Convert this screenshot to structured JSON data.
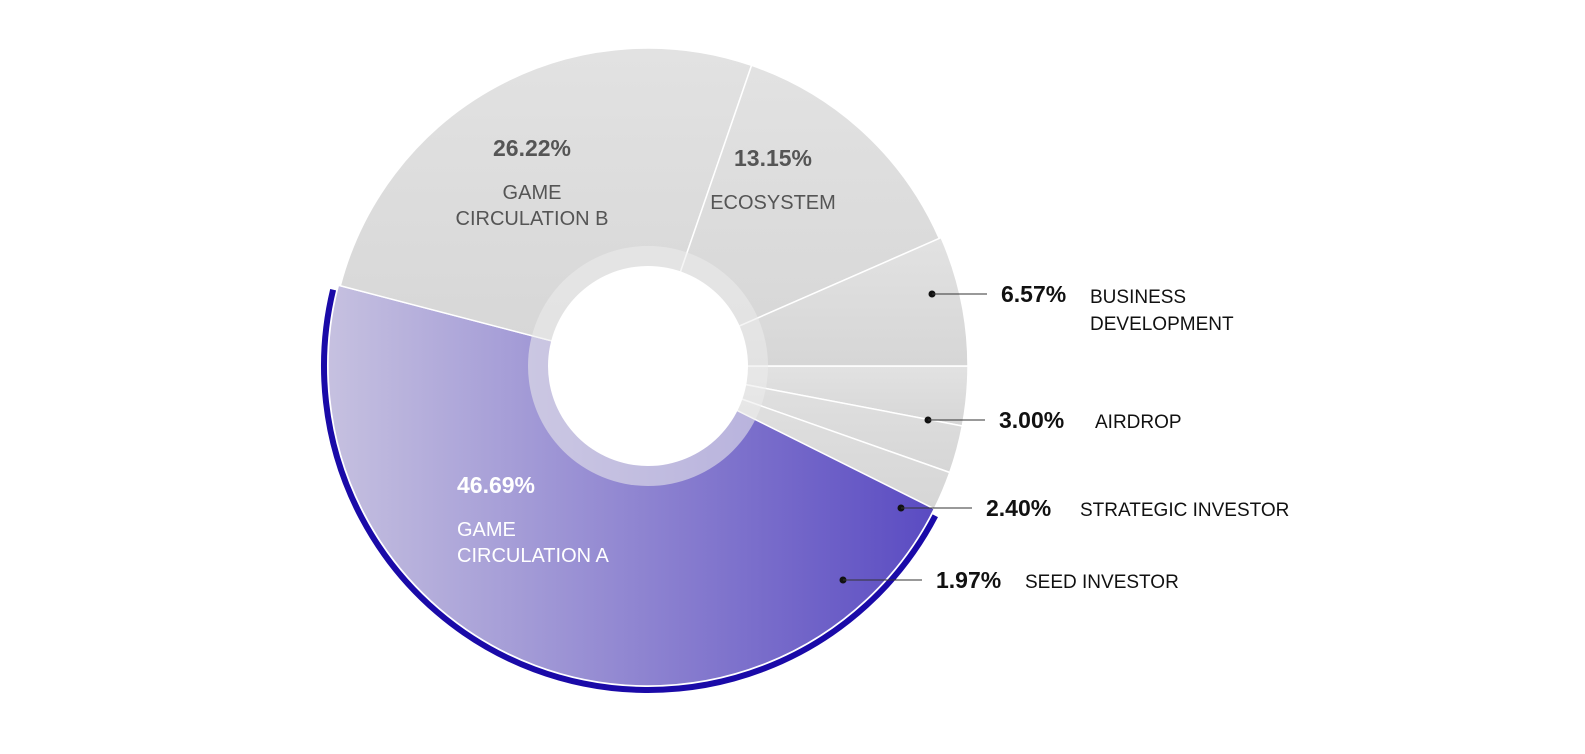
{
  "chart_data": {
    "type": "pie",
    "title": "",
    "slices": [
      {
        "label": "GAME CIRCULATION A",
        "value": 46.69,
        "pct_label": "46.69%",
        "highlight": true,
        "label_style": "inside"
      },
      {
        "label": "GAME CIRCULATION B",
        "value": 26.22,
        "pct_label": "26.22%",
        "highlight": false,
        "label_style": "inside"
      },
      {
        "label": "ECOSYSTEM",
        "value": 13.15,
        "pct_label": "13.15%",
        "highlight": false,
        "label_style": "inside"
      },
      {
        "label": "BUSINESS DEVELOPMENT",
        "value": 6.57,
        "pct_label": "6.57%",
        "highlight": false,
        "label_style": "callout"
      },
      {
        "label": "AIRDROP",
        "value": 3.0,
        "pct_label": "3.00%",
        "highlight": false,
        "label_style": "callout"
      },
      {
        "label": "STRATEGIC INVESTOR",
        "value": 2.4,
        "pct_label": "2.40%",
        "highlight": false,
        "label_style": "callout"
      },
      {
        "label": "SEED INVESTOR",
        "value": 1.97,
        "pct_label": "1.97%",
        "highlight": false,
        "label_style": "callout"
      }
    ],
    "colors": {
      "accent": "#6a5ccc",
      "accent_edge": "#1a0aa8",
      "grey": "#dcdcdc",
      "inside_text_dark": "#555555",
      "inside_text_light": "#ffffff",
      "callout_text": "#111111"
    }
  }
}
